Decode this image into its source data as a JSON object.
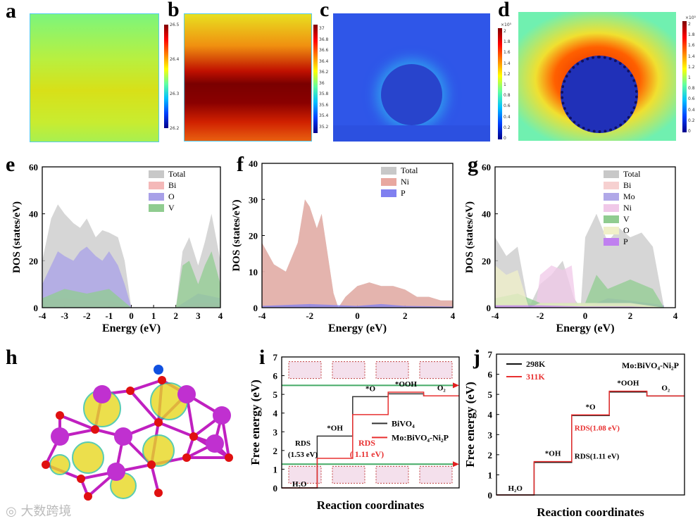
{
  "panels": {
    "a": "a",
    "b": "b",
    "c": "c",
    "d": "d",
    "e": "e",
    "f": "f",
    "g": "g",
    "h": "h",
    "i": "i",
    "j": "j"
  },
  "colorbars": {
    "a": {
      "ticks": [
        "26.5",
        "26.4",
        "26.3",
        "26.2"
      ]
    },
    "b": {
      "ticks": [
        "37",
        "36.8",
        "36.6",
        "36.4",
        "36.2",
        "36",
        "35.8",
        "35.6",
        "35.4",
        "35.2"
      ]
    },
    "c": {
      "exponent": "×10⁵",
      "ticks": [
        "2",
        "1.8",
        "1.6",
        "1.4",
        "1.2",
        "1",
        "0.8",
        "0.6",
        "0.4",
        "0.2",
        "0"
      ]
    },
    "d": {
      "exponent": "×10⁵",
      "ticks": [
        "2",
        "1.8",
        "1.6",
        "1.4",
        "1.2",
        "1",
        "0.8",
        "0.6",
        "0.4",
        "0.2",
        "0"
      ]
    }
  },
  "watermark": "大数跨境",
  "chart_data": [
    {
      "id": "e",
      "type": "area",
      "xlabel": "Energy (eV)",
      "ylabel": "DOS (states/eV)",
      "xlim": [
        -4,
        4
      ],
      "ylim": [
        0,
        60
      ],
      "xticks": [
        "-4",
        "-3",
        "-2",
        "-1",
        "0",
        "1",
        "2",
        "3",
        "4"
      ],
      "yticks": [
        "0",
        "20",
        "40",
        "60"
      ],
      "legend": "top-right",
      "series": [
        {
          "name": "Total",
          "color": "#c8c8c8",
          "x": [
            -4,
            -3.6,
            -3.3,
            -3,
            -2.6,
            -2.3,
            -2,
            -1.6,
            -1.3,
            -1,
            -0.6,
            -0.3,
            0,
            2,
            2.3,
            2.6,
            3,
            3.3,
            3.6,
            4
          ],
          "y": [
            20,
            38,
            44,
            40,
            36,
            34,
            38,
            30,
            33,
            32,
            30,
            20,
            0,
            0,
            24,
            30,
            18,
            28,
            40,
            20
          ]
        },
        {
          "name": "Bi",
          "color": "#f4b8b8",
          "x": [
            -4,
            -3,
            -2,
            -1,
            0,
            2,
            3,
            4
          ],
          "y": [
            3,
            4,
            3,
            3,
            0,
            0,
            2,
            2
          ]
        },
        {
          "name": "O",
          "color": "#a8a0e8",
          "x": [
            -4,
            -3.6,
            -3.3,
            -3,
            -2.6,
            -2.3,
            -2,
            -1.6,
            -1.3,
            -1,
            -0.6,
            -0.3,
            0,
            2,
            3,
            4
          ],
          "y": [
            10,
            18,
            24,
            22,
            20,
            24,
            26,
            22,
            20,
            24,
            18,
            10,
            0,
            0,
            6,
            4
          ]
        },
        {
          "name": "V",
          "color": "#90cc90",
          "x": [
            -4,
            -3,
            -2,
            -1,
            0,
            2,
            2.3,
            2.6,
            3,
            3.3,
            3.6,
            4
          ],
          "y": [
            4,
            8,
            6,
            8,
            0,
            0,
            18,
            20,
            10,
            18,
            24,
            10
          ]
        }
      ]
    },
    {
      "id": "f",
      "type": "area",
      "xlabel": "Energy (eV)",
      "ylabel": "DOS (states/eV)",
      "xlim": [
        -4,
        4
      ],
      "ylim": [
        0,
        40
      ],
      "xticks": [
        "-4",
        "-2",
        "0",
        "2",
        "4"
      ],
      "yticks": [
        "0",
        "10",
        "20",
        "30",
        "40"
      ],
      "legend": "top-right",
      "series": [
        {
          "name": "Total",
          "color": "#c8c8c8",
          "x": [
            -4,
            -3.5,
            -3,
            -2.5,
            -2.2,
            -2,
            -1.7,
            -1.5,
            -1,
            -0.8,
            -0.5,
            0,
            0.5,
            1,
            1.5,
            2,
            2.5,
            3,
            3.5,
            4
          ],
          "y": [
            18,
            12,
            10,
            18,
            30,
            28,
            22,
            26,
            4,
            0,
            3,
            6,
            7,
            6,
            6,
            5,
            3,
            3,
            2,
            2
          ]
        },
        {
          "name": "Ni",
          "color": "#e8a8a0",
          "x": [
            -4,
            -3.5,
            -3,
            -2.5,
            -2.2,
            -2,
            -1.7,
            -1.5,
            -1,
            -0.8,
            -0.5,
            0,
            0.5,
            1,
            1.5,
            2,
            2.5,
            3,
            3.5,
            4
          ],
          "y": [
            18,
            12,
            10,
            18,
            30,
            28,
            22,
            26,
            4,
            0,
            3,
            6,
            7,
            6,
            6,
            5,
            3,
            3,
            2,
            2
          ]
        },
        {
          "name": "P",
          "color": "#8080f0",
          "x": [
            -4,
            -2,
            0,
            1,
            2,
            4
          ],
          "y": [
            0.5,
            1,
            0.5,
            1,
            0.5,
            0.3
          ]
        }
      ]
    },
    {
      "id": "g",
      "type": "area",
      "xlabel": "Energy (eV)",
      "ylabel": "DOS (states/eV)",
      "xlim": [
        -4,
        4
      ],
      "ylim": [
        0,
        60
      ],
      "xticks": [
        "-4",
        "-2",
        "0",
        "2",
        "4"
      ],
      "yticks": [
        "0",
        "20",
        "40",
        "60"
      ],
      "legend": "top-right",
      "series": [
        {
          "name": "Total",
          "color": "#c8c8c8",
          "x": [
            -4,
            -3.5,
            -3,
            -2.5,
            -2,
            -1.5,
            -1,
            -0.5,
            -0.2,
            0,
            0.5,
            1,
            1.5,
            2,
            2.5,
            3,
            3.5
          ],
          "y": [
            30,
            22,
            26,
            0,
            10,
            14,
            20,
            4,
            0,
            30,
            40,
            28,
            34,
            30,
            32,
            26,
            0
          ]
        },
        {
          "name": "Bi",
          "color": "#f6d0d0",
          "x": [
            -4,
            -3,
            -2,
            0,
            2,
            3.5
          ],
          "y": [
            3,
            3,
            1,
            1,
            2,
            1
          ]
        },
        {
          "name": "Mo",
          "color": "#b0a8e8",
          "x": [
            -4,
            -2,
            0,
            1,
            2,
            3.5
          ],
          "y": [
            1,
            1,
            0,
            4,
            3,
            1
          ]
        },
        {
          "name": "Ni",
          "color": "#f0c8e8",
          "x": [
            -4,
            -2.2,
            -2,
            -1.5,
            -1,
            -0.6,
            -0.4,
            0
          ],
          "y": [
            0,
            0,
            14,
            18,
            16,
            18,
            0,
            0
          ]
        },
        {
          "name": "V",
          "color": "#90cc90",
          "x": [
            -4,
            -3,
            -2,
            0,
            0.5,
            1,
            2,
            3,
            3.5
          ],
          "y": [
            4,
            6,
            2,
            2,
            14,
            8,
            12,
            8,
            0
          ]
        },
        {
          "name": "O",
          "color": "#f0f0c8",
          "x": [
            -4,
            -3.5,
            -3,
            -2.5,
            -2,
            0,
            2,
            3.5
          ],
          "y": [
            18,
            14,
            16,
            0,
            2,
            2,
            2,
            0
          ]
        },
        {
          "name": "P",
          "color": "#c080f0",
          "x": [
            -4,
            -2,
            0,
            2,
            3.5
          ],
          "y": [
            1,
            1,
            0.5,
            0.5,
            0
          ]
        }
      ]
    },
    {
      "id": "i",
      "type": "line",
      "xlabel": "Reaction coordinates",
      "ylabel": "Free energy (eV)",
      "ylim": [
        0,
        7
      ],
      "yticks": [
        "0",
        "1",
        "2",
        "3",
        "4",
        "5",
        "6",
        "7"
      ],
      "steps": [
        "H2O",
        "*OH",
        "*O",
        "*OOH",
        "O2"
      ],
      "series": [
        {
          "name": "BiVO4",
          "color": "#333333",
          "values": [
            0,
            2.77,
            4.88,
            5.03,
            4.92
          ]
        },
        {
          "name": "Mo:BiVO4-Ni2P",
          "color": "#e83030",
          "values": [
            0,
            1.58,
            3.92,
            5.12,
            4.92
          ]
        }
      ],
      "annotations": [
        {
          "text": "RDS",
          "color": "#000"
        },
        {
          "text": "(1.53 eV)",
          "color": "#000"
        },
        {
          "text": "RDS",
          "color": "#e83030"
        },
        {
          "text": "( 1.11 eV)",
          "color": "#e83030"
        }
      ],
      "step_labels": [
        "H₂O",
        "*OH",
        "*O",
        "*OOH",
        "O₂"
      ],
      "legend_labels": [
        "BiVO₄",
        "Mo:BiVO₄-Ni₂P"
      ],
      "arrow_levels": [
        5.48,
        1.27
      ]
    },
    {
      "id": "j",
      "type": "line",
      "xlabel": "Reaction coordinates",
      "ylabel": "Free energy (eV)",
      "ylim": [
        0,
        7
      ],
      "yticks": [
        "0",
        "1",
        "2",
        "3",
        "4",
        "5",
        "6",
        "7"
      ],
      "steps": [
        "H2O",
        "*OH",
        "*O",
        "*OOH",
        "O2"
      ],
      "series": [
        {
          "name": "298K",
          "color": "#111111",
          "values": [
            0,
            1.62,
            3.95,
            5.12,
            4.92
          ]
        },
        {
          "name": "311K",
          "color": "#e83030",
          "values": [
            0,
            1.66,
            3.98,
            5.16,
            4.92
          ]
        }
      ],
      "annotations": [
        {
          "text": "RDS(1.08 eV)",
          "color": "#e83030"
        },
        {
          "text": "RDS(1.11 eV)",
          "color": "#000"
        }
      ],
      "step_labels": [
        "H₂O",
        "*OH",
        "*O",
        "*OOH",
        "O₂"
      ],
      "legend_labels": [
        "298K",
        "311K"
      ],
      "title": "Mo:BiVO₄-Ni₂P"
    }
  ]
}
